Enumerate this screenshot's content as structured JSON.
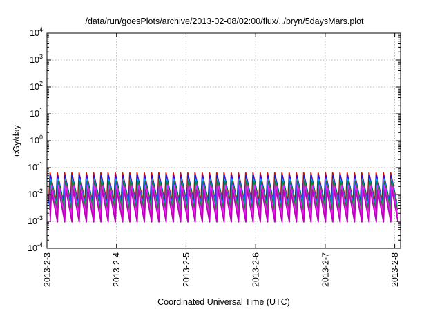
{
  "chart_data": {
    "type": "line",
    "title": "/data/run/goesPlots/archive/2013-02-08/02:00/flux/../bryn/5daysMars.plot",
    "xlabel": "Coordinated Universal Time (UTC)",
    "ylabel": "cGy/day",
    "yscale": "log",
    "ylim": [
      0.0001,
      10000
    ],
    "xlim": [
      "2013-02-03T00:00",
      "2013-02-08T02:00"
    ],
    "x_ticks": [
      "2013-2-3",
      "2013-2-4",
      "2013-2-5",
      "2013-2-6",
      "2013-2-7",
      "2013-2-8"
    ],
    "y_ticks": [
      {
        "base": "10",
        "exp": "-4",
        "value": 0.0001
      },
      {
        "base": "10",
        "exp": "-3",
        "value": 0.001
      },
      {
        "base": "10",
        "exp": "-2",
        "value": 0.01
      },
      {
        "base": "10",
        "exp": "-1",
        "value": 0.1
      },
      {
        "base": "10",
        "exp": "0",
        "value": 1
      },
      {
        "base": "10",
        "exp": "1",
        "value": 10
      },
      {
        "base": "10",
        "exp": "2",
        "value": 100
      },
      {
        "base": "10",
        "exp": "3",
        "value": 1000
      },
      {
        "base": "10",
        "exp": "4",
        "value": 10000
      }
    ],
    "grid": true,
    "legend": "none",
    "sawtooth_cycles_per_day": 9.6,
    "series": [
      {
        "color": "#d01010",
        "peak": 0.065,
        "trough": 0.0055
      },
      {
        "color": "#1515ff",
        "peak": 0.05,
        "trough": 0.0045
      },
      {
        "color": "#00b0c8",
        "peak": 0.038,
        "trough": 0.0036
      },
      {
        "color": "#108020",
        "peak": 0.03,
        "trough": 0.0026
      },
      {
        "color": "#ff20ff",
        "peak": 0.022,
        "trough": 0.0016
      },
      {
        "color": "#c000c0",
        "peak": 0.015,
        "trough": 0.00095
      }
    ]
  }
}
